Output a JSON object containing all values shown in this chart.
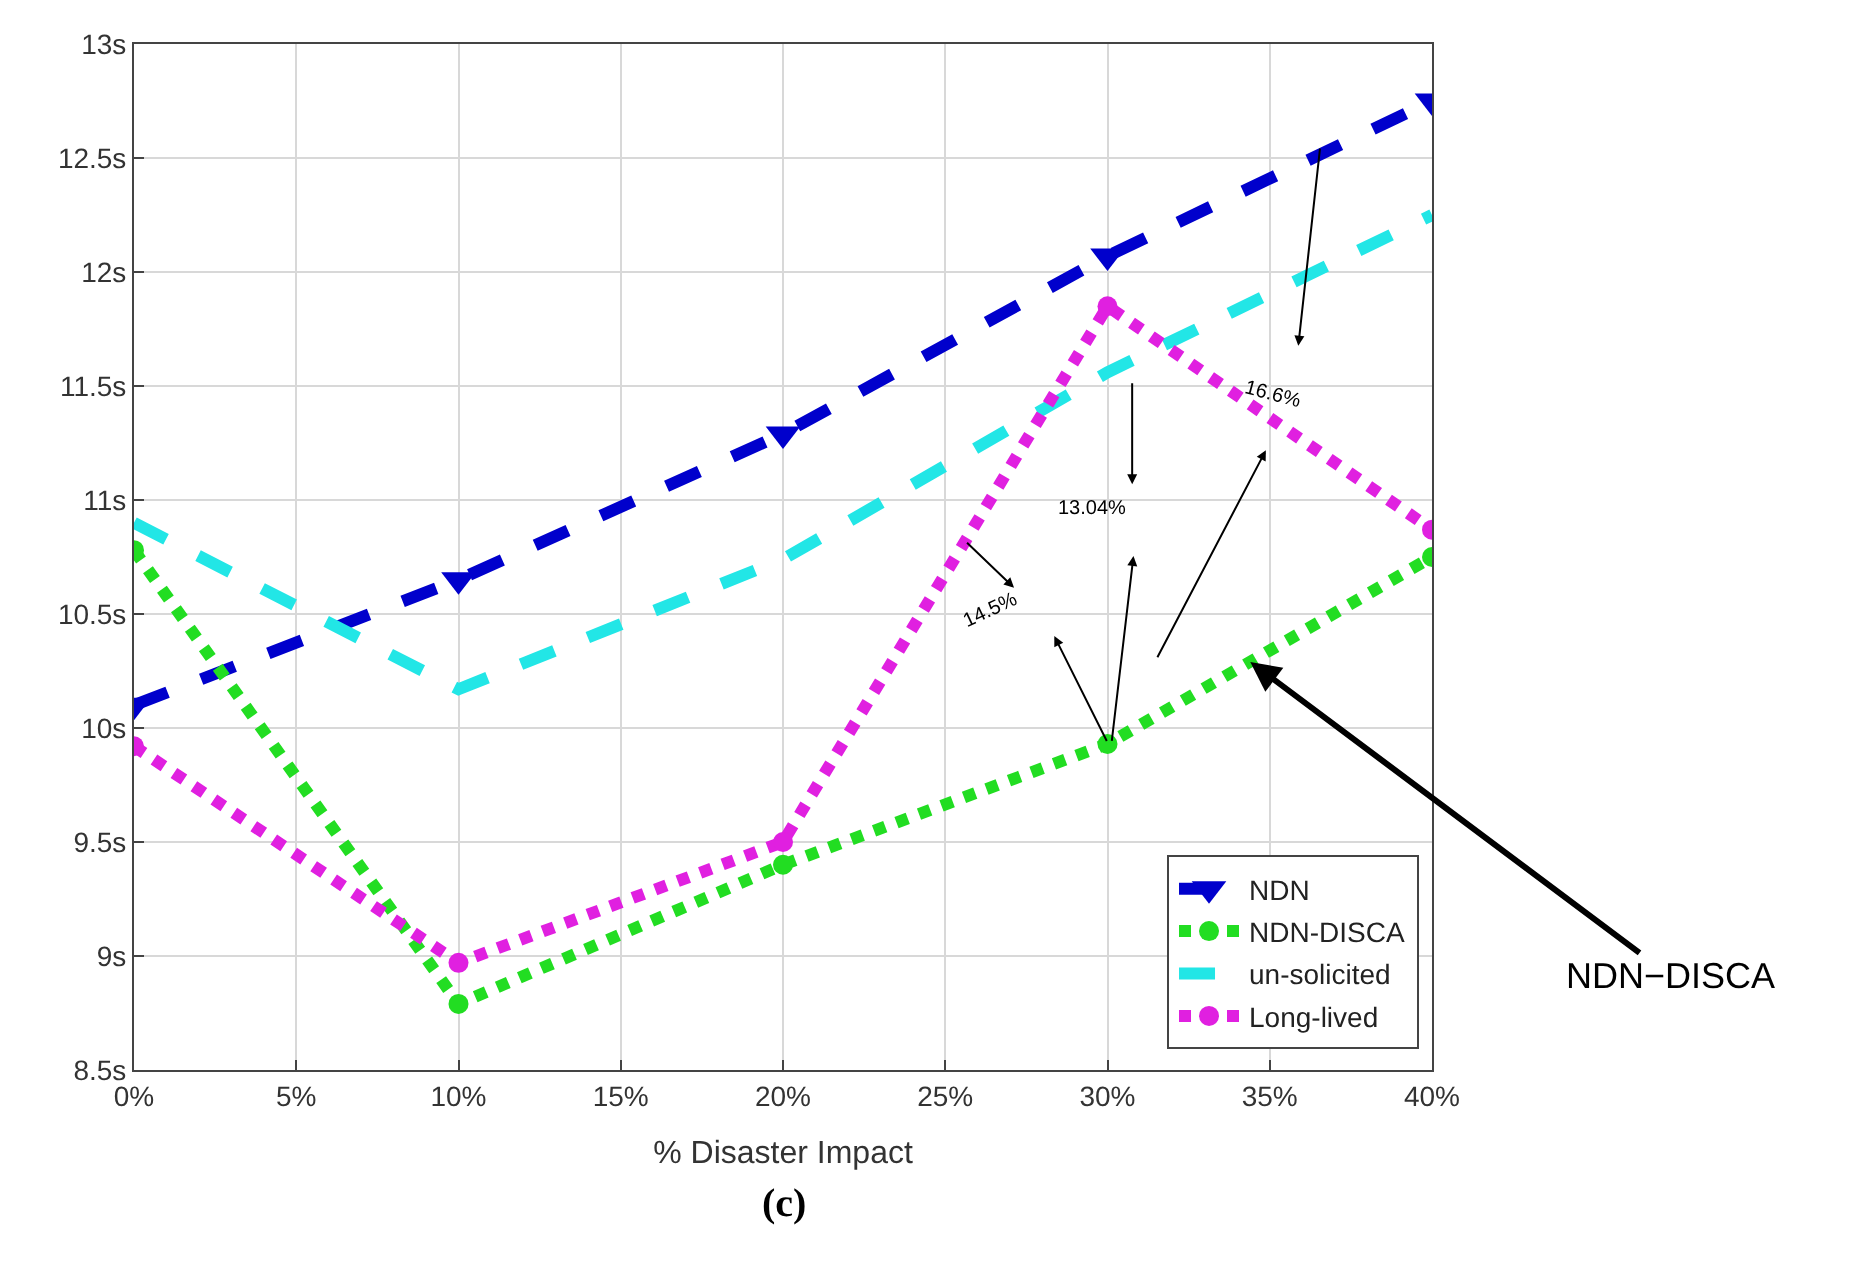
{
  "chart_data": {
    "type": "line",
    "xlabel": "% Disaster Impact",
    "x": [
      0,
      10,
      20,
      30,
      40
    ],
    "series": [
      {
        "name": "NDN",
        "color": "#0000cc",
        "values": [
          10.1,
          10.65,
          11.29,
          12.07,
          12.75
        ],
        "marker": "triangle",
        "line_style": "dashed"
      },
      {
        "name": "NDN-DISCA",
        "color": "#22dd22",
        "values": [
          10.78,
          8.79,
          9.4,
          9.93,
          10.75
        ],
        "marker": "circle",
        "line_style": "dotted"
      },
      {
        "name": "un-solicited",
        "color": "#22e6e6",
        "values": [
          10.9,
          10.17,
          10.74,
          11.56,
          12.25
        ],
        "marker": "none",
        "line_style": "dashed"
      },
      {
        "name": "Long-lived",
        "color": "#e020e0",
        "values": [
          9.92,
          8.97,
          9.5,
          11.85,
          10.87
        ],
        "marker": "circle",
        "line_style": "dotted"
      }
    ],
    "xlim": [
      0,
      40
    ],
    "xticks": [
      {
        "value": 0,
        "label": "0%"
      },
      {
        "value": 5,
        "label": "5%"
      },
      {
        "value": 10,
        "label": "10%"
      },
      {
        "value": 15,
        "label": "15%"
      },
      {
        "value": 20,
        "label": "20%"
      },
      {
        "value": 25,
        "label": "25%"
      },
      {
        "value": 30,
        "label": "30%"
      },
      {
        "value": 35,
        "label": "35%"
      },
      {
        "value": 40,
        "label": "40%"
      }
    ],
    "ylim": [
      8.5,
      13
    ],
    "yticks": [
      {
        "value": 8.5,
        "label": "8.5s"
      },
      {
        "value": 9,
        "label": "9s"
      },
      {
        "value": 9.5,
        "label": "9.5s"
      },
      {
        "value": 10,
        "label": "10s"
      },
      {
        "value": 10.5,
        "label": "10.5s"
      },
      {
        "value": 11,
        "label": "11s"
      },
      {
        "value": 11.5,
        "label": "11.5s"
      },
      {
        "value": 12,
        "label": "12s"
      },
      {
        "value": 12.5,
        "label": "12.5s"
      },
      {
        "value": 13,
        "label": "13s"
      }
    ],
    "grid": true,
    "legend": "bottom right",
    "annotations": [
      "14.5%",
      "13.04%",
      "16.6%",
      {
        "text": "NDN−DISCA",
        "x": 34.4,
        "y": 10.29
      },
      "(c)"
    ]
  }
}
